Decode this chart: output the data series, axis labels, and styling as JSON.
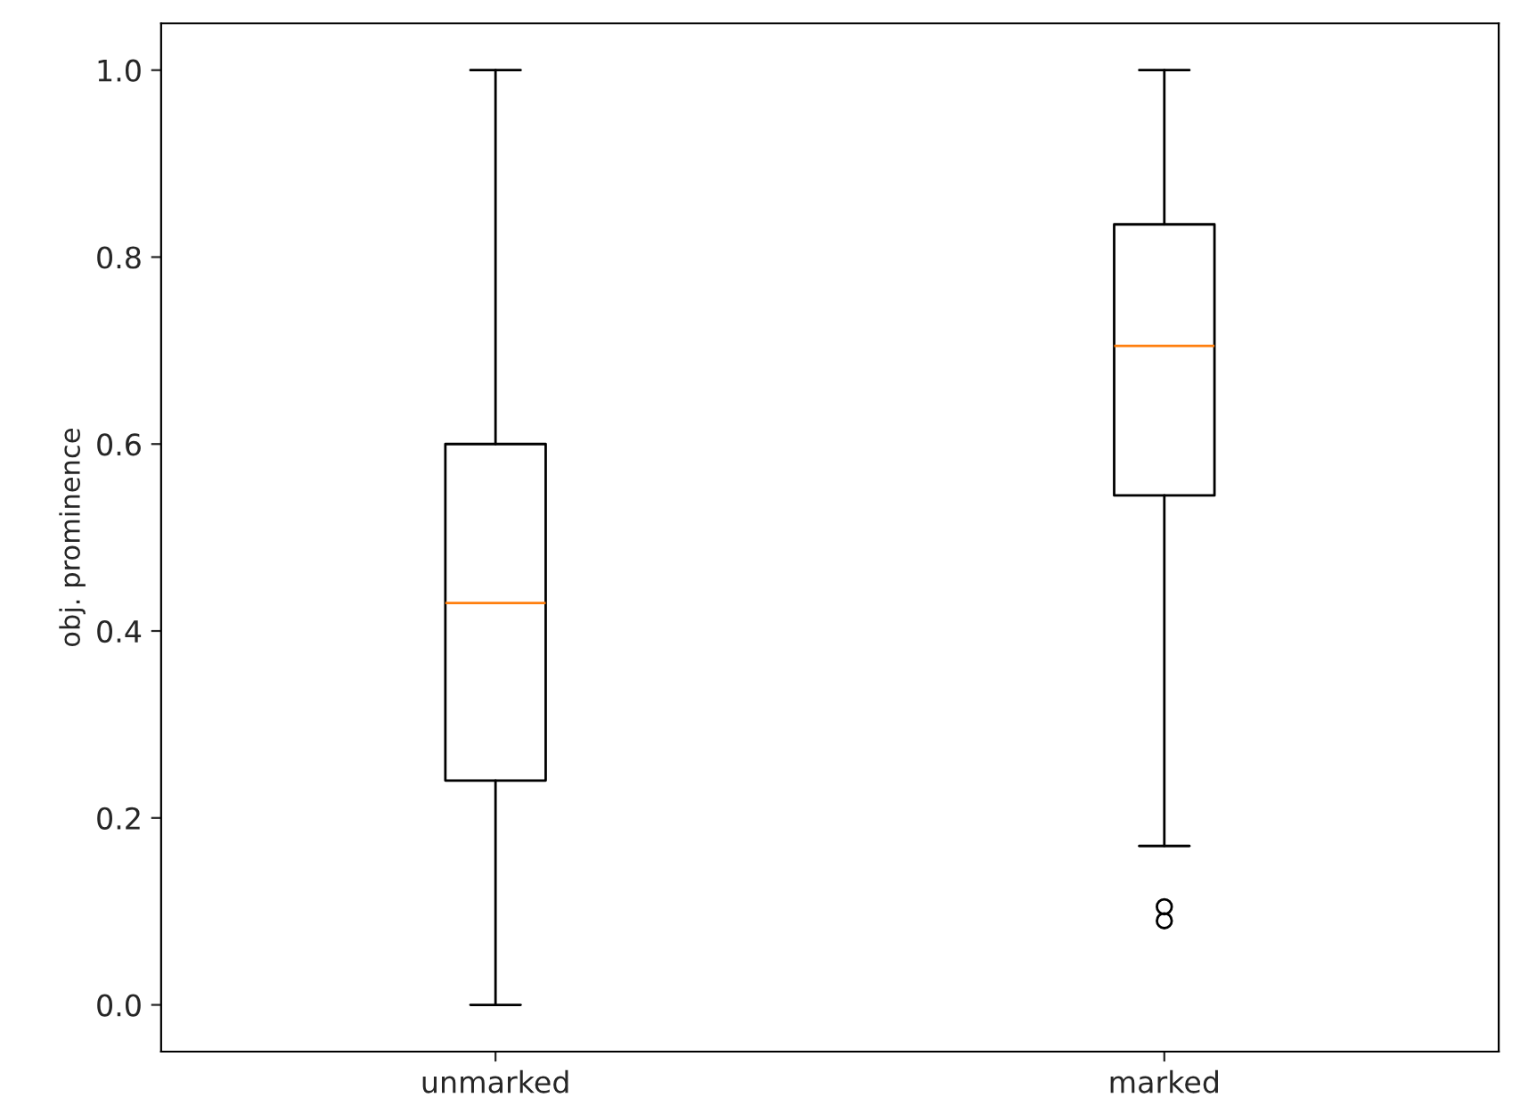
{
  "chart_data": {
    "type": "box",
    "ylabel": "obj. prominence",
    "categories": [
      "unmarked",
      "marked"
    ],
    "boxes": [
      {
        "low": 0.0,
        "q1": 0.24,
        "median": 0.43,
        "q3": 0.6,
        "high": 1.0
      },
      {
        "low": 0.17,
        "q1": 0.545,
        "median": 0.705,
        "q3": 0.835,
        "high": 1.0,
        "outliers": [
          0.105,
          0.09
        ]
      }
    ],
    "color": "#000000",
    "ylim": [
      -0.05,
      1.05
    ],
    "yticks": [
      {
        "value": 0,
        "label": "0.0"
      },
      {
        "value": 0.2,
        "label": "0.2"
      },
      {
        "value": 0.4,
        "label": "0.4"
      },
      {
        "value": 0.6,
        "label": "0.6"
      },
      {
        "value": 0.8,
        "label": "0.8"
      },
      {
        "value": 1,
        "label": "1.0"
      }
    ],
    "grid": false
  }
}
